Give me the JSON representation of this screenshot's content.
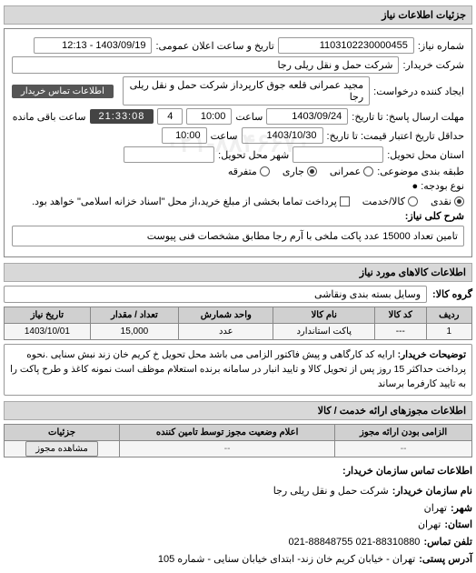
{
  "panel_title": "جزئیات اطلاعات نیاز",
  "req": {
    "number_label": "شماره نیاز:",
    "number": "1103102230000455",
    "announce_label": "تاریخ و ساعت اعلان عمومی:",
    "announce": "1403/09/19 - 12:13",
    "buyer_label": "شرکت خریدار:",
    "buyer": "شرکت حمل و نقل ریلی رجا",
    "requester_label": "ایجاد کننده درخواست:",
    "requester": "مجید عمرانی قلعه جوق کارپرداز شرکت حمل و نقل ریلی رجا",
    "contact_btn": "اطلاعات تماس خریدار",
    "deadline_label": "مهلت ارسال پاسخ: تا تاریخ:",
    "deadline_date": "1403/09/24",
    "time_label": "ساعت",
    "deadline_time": "10:00",
    "days_remaining": "4",
    "remaining_label": "ساعت باقی مانده",
    "countdown": "21:33:08",
    "validity_label": "حداقل تاریخ اعتبار قیمت: تا تاریخ:",
    "validity_date": "1403/10/30",
    "validity_time": "10:00",
    "delivery_state_label": "استان محل تحویل:",
    "delivery_state": "",
    "delivery_city_label": "شهر محل تحویل:",
    "delivery_city": "",
    "budget_label": "طبقه بندی موضوعی:",
    "budget_opts": [
      "عمرانی",
      "جاری",
      "متفرقه"
    ],
    "budget_selected_index": 1,
    "paytype_label": "نوع بودجه: ●",
    "paytype_opts": [
      "نقدی",
      "کالا/خدمت",
      "پرداخت تماما بخشی از مبلغ خرید،از محل \"اسناد خزانه اسلامی\" خواهد بود."
    ],
    "paytype_selected_index": 0,
    "need_title_label": "شرح كلی نیاز:",
    "need_title": "تامین تعداد 15000 عدد پاکت ملخی با آرم رجا مطابق مشخصات فنی پیوست"
  },
  "goods": {
    "section_title": "اطلاعات کالاهای مورد نیاز",
    "group_label": "گروه کالا:",
    "group_value": "وسایل بسته بندی  ونقاشی",
    "columns": [
      "ردیف",
      "کد کالا",
      "نام کالا",
      "واحد شمارش",
      "تعداد / مقدار",
      "تاریخ نیاز"
    ],
    "rows": [
      [
        "1",
        "---",
        "پاکت استاندارد",
        "عدد",
        "15,000",
        "1403/10/01"
      ]
    ],
    "buyer_notes_label": "توضیحات خریدار:",
    "buyer_notes": "ارایه کد کارگاهی و پیش فاکتور الزامی می باشد محل تحویل خ کریم خان زند نبش سنایی .نحوه پرداخت حداکثر 15 روز پس از تحویل کالا و تایید انبار در سامانه برنده استعلام موظف است نمونه کاغذ و طرح پاکت را به تایید کارفرما برساند"
  },
  "permits": {
    "section_title": "اطلاعات مجوزهای ارائه خدمت / کالا",
    "columns": [
      "الزامی بودن ارائه مجوز",
      "اعلام وضعیت مجوز توسط تامین کننده",
      "جزئیات"
    ],
    "row": [
      "--",
      "--"
    ],
    "view_btn": "مشاهده مجوز"
  },
  "contact": {
    "header": "اطلاعات تماس سازمان خریدار:",
    "org_label": "نام سازمان خریدار:",
    "org": "شرکت حمل و نقل ریلی رجا",
    "city_label": "شهر:",
    "city": "تهران",
    "province_label": "استان:",
    "province": "تهران",
    "phone_label": "تلفن تماس:",
    "phone": "021-88310880   021-88848755",
    "address_label": "آدرس پستی:",
    "address": "تهران - خیابان کریم خان زند- ابتدای خیابان سنایی - شماره 105"
  },
  "watermark": "۰۲۱-۸۸۴۶۶۷۰"
}
